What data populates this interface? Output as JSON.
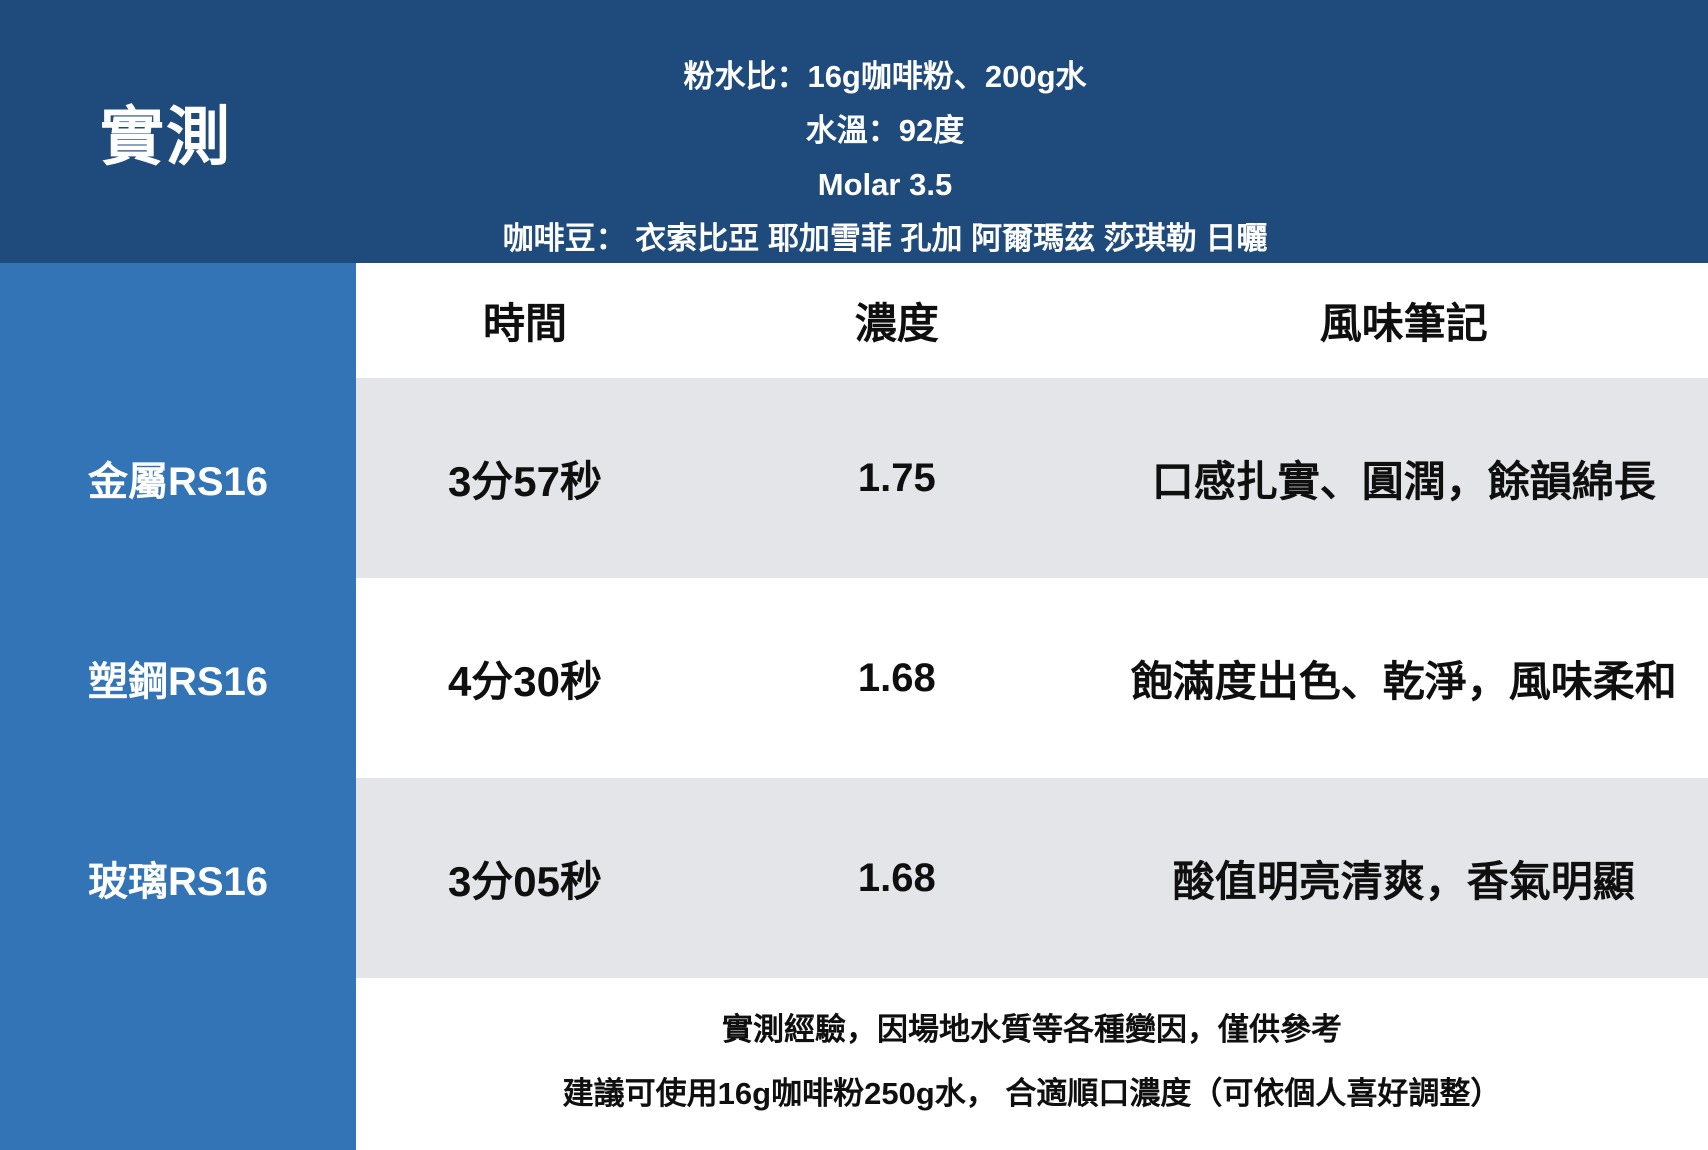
{
  "colors": {
    "header_bg": "#1E4A7C",
    "sidebar_bg": "#3374B7",
    "row_alt_bg": "#E4E5E9",
    "text_on_dark": "#FFFFFF",
    "text_on_light": "#0F0F0F"
  },
  "header": {
    "title": "實測",
    "info_lines": [
      "粉水比：16g咖啡粉、200g水",
      "水溫：92度",
      "Molar 3.5",
      "咖啡豆： 衣索比亞 耶加雪菲 孔加 阿爾瑪茲 莎琪勒 日曬"
    ]
  },
  "sidebar": {
    "rows": [
      "金屬RS16",
      "塑鋼RS16",
      "玻璃RS16"
    ]
  },
  "table": {
    "columns": [
      "時間",
      "濃度",
      "風味筆記"
    ],
    "rows": [
      {
        "label": "金屬RS16",
        "time": "3分57秒",
        "concentration": "1.75",
        "notes": "口感扎實、圓潤，餘韻綿長"
      },
      {
        "label": "塑鋼RS16",
        "time": "4分30秒",
        "concentration": "1.68",
        "notes": "飽滿度出色、乾淨，風味柔和"
      },
      {
        "label": "玻璃RS16",
        "time": "3分05秒",
        "concentration": "1.68",
        "notes": "酸值明亮清爽，香氣明顯"
      }
    ]
  },
  "footer": {
    "lines": [
      "實測經驗，因場地水質等各種變因，僅供參考",
      "建議可使用16g咖啡粉250g水， 合適順口濃度（可依個人喜好調整）"
    ]
  },
  "chart_data": {
    "type": "table",
    "title": "實測",
    "categories": [
      "金屬RS16",
      "塑鋼RS16",
      "玻璃RS16"
    ],
    "series": [
      {
        "name": "時間",
        "values": [
          "3分57秒",
          "4分30秒",
          "3分05秒"
        ]
      },
      {
        "name": "濃度",
        "values": [
          1.75,
          1.68,
          1.68
        ]
      },
      {
        "name": "風味筆記",
        "values": [
          "口感扎實、圓潤，餘韻綿長",
          "飽滿度出色、乾淨，風味柔和",
          "酸值明亮清爽，香氣明顯"
        ]
      }
    ]
  }
}
